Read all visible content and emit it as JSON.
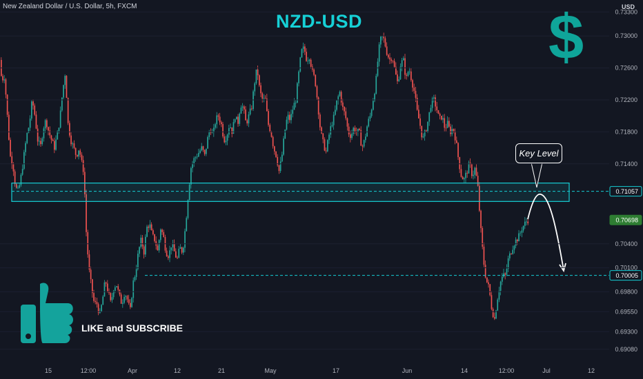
{
  "header": {
    "symbol": "New Zealand Dollar / U.S. Dollar, 5h, FXCM",
    "currency": "USD",
    "title": "NZD-USD",
    "dollar_sign": "$"
  },
  "annotations": {
    "key_level_label": "Key Level",
    "like_text": "LIKE and SUBSCRIBE",
    "thumb_icon": "thumbs-up-icon"
  },
  "colors": {
    "background": "#131722",
    "up": "#26a69a",
    "down": "#ef5350",
    "zone": "#16d0d6",
    "accent_title": "#16d0d6",
    "dollar": "#0fa59a",
    "current_price_tag": "#2e7d32"
  },
  "chart_data": {
    "type": "line",
    "style": "candlestick",
    "x_ticks": [
      "15",
      "12:00",
      "Apr",
      "12",
      "21",
      "May",
      "17",
      "Jun",
      "14",
      "12:00",
      "Jul",
      "12"
    ],
    "y_ticks": [
      "0.73300",
      "0.73000",
      "0.72600",
      "0.72200",
      "0.71800",
      "0.71400",
      "0.70400",
      "0.70100",
      "0.69800",
      "0.69550",
      "0.69300",
      "0.69080"
    ],
    "ylim": [
      0.6895,
      0.7345
    ],
    "price_tags": [
      {
        "value": "0.71057",
        "kind": "level"
      },
      {
        "value": "0.70698",
        "kind": "current"
      },
      {
        "value": "0.70005",
        "kind": "level"
      }
    ],
    "levels": [
      0.71057,
      0.70005
    ],
    "key_zone": [
      0.7093,
      0.7116
    ],
    "series": [
      {
        "path": [
          [
            0,
            0.727
          ],
          [
            4,
            0.7245
          ],
          [
            8,
            0.725
          ],
          [
            12,
            0.72
          ],
          [
            16,
            0.715
          ],
          [
            20,
            0.714
          ],
          [
            24,
            0.711
          ],
          [
            28,
            0.7105
          ],
          [
            32,
            0.7125
          ],
          [
            36,
            0.715
          ],
          [
            40,
            0.7175
          ],
          [
            44,
            0.719
          ],
          [
            48,
            0.722
          ],
          [
            52,
            0.72
          ],
          [
            56,
            0.717
          ],
          [
            60,
            0.716
          ],
          [
            64,
            0.7185
          ],
          [
            68,
            0.7195
          ],
          [
            72,
            0.718
          ],
          [
            76,
            0.717
          ],
          [
            80,
            0.716
          ],
          [
            84,
            0.7175
          ],
          [
            88,
            0.7195
          ],
          [
            92,
            0.723
          ],
          [
            96,
            0.7255
          ],
          [
            100,
            0.719
          ],
          [
            104,
            0.717
          ],
          [
            108,
            0.716
          ],
          [
            112,
            0.715
          ],
          [
            116,
            0.716
          ],
          [
            120,
            0.714
          ],
          [
            123,
            0.713
          ],
          [
            126,
            0.706
          ],
          [
            130,
            0.701
          ],
          [
            134,
            0.6985
          ],
          [
            138,
            0.6965
          ],
          [
            142,
            0.6965
          ],
          [
            146,
            0.695
          ],
          [
            150,
            0.697
          ],
          [
            154,
            0.6995
          ],
          [
            158,
            0.698
          ],
          [
            162,
            0.6965
          ],
          [
            166,
            0.6985
          ],
          [
            170,
            0.699
          ],
          [
            174,
            0.6975
          ],
          [
            178,
            0.6965
          ],
          [
            182,
            0.698
          ],
          [
            186,
            0.697
          ],
          [
            190,
            0.6955
          ],
          [
            194,
            0.699
          ],
          [
            198,
            0.7005
          ],
          [
            202,
            0.703
          ],
          [
            206,
            0.7045
          ],
          [
            210,
            0.703
          ],
          [
            214,
            0.706
          ],
          [
            218,
            0.7065
          ],
          [
            222,
            0.705
          ],
          [
            226,
            0.7045
          ],
          [
            230,
            0.703
          ],
          [
            234,
            0.706
          ],
          [
            238,
            0.705
          ],
          [
            242,
            0.703
          ],
          [
            246,
            0.7025
          ],
          [
            250,
            0.704
          ],
          [
            254,
            0.703
          ],
          [
            258,
            0.702
          ],
          [
            262,
            0.7035
          ],
          [
            266,
            0.703
          ],
          [
            270,
            0.706
          ],
          [
            274,
            0.71
          ],
          [
            278,
            0.7135
          ],
          [
            282,
            0.7145
          ],
          [
            286,
            0.715
          ],
          [
            290,
            0.7155
          ],
          [
            294,
            0.716
          ],
          [
            298,
            0.715
          ],
          [
            302,
            0.717
          ],
          [
            306,
            0.7185
          ],
          [
            310,
            0.7175
          ],
          [
            314,
            0.7195
          ],
          [
            318,
            0.72
          ],
          [
            322,
            0.719
          ],
          [
            326,
            0.717
          ],
          [
            330,
            0.7175
          ],
          [
            334,
            0.719
          ],
          [
            338,
            0.718
          ],
          [
            342,
            0.72
          ],
          [
            346,
            0.719
          ],
          [
            350,
            0.7215
          ],
          [
            354,
            0.721
          ],
          [
            358,
            0.719
          ],
          [
            362,
            0.72
          ],
          [
            366,
            0.721
          ],
          [
            370,
            0.724
          ],
          [
            374,
            0.726
          ],
          [
            378,
            0.723
          ],
          [
            382,
            0.722
          ],
          [
            386,
            0.722
          ],
          [
            390,
            0.719
          ],
          [
            394,
            0.718
          ],
          [
            398,
            0.716
          ],
          [
            402,
            0.715
          ],
          [
            406,
            0.713
          ],
          [
            410,
            0.715
          ],
          [
            414,
            0.718
          ],
          [
            418,
            0.72
          ],
          [
            422,
            0.7195
          ],
          [
            426,
            0.721
          ],
          [
            430,
            0.722
          ],
          [
            434,
            0.725
          ],
          [
            438,
            0.728
          ],
          [
            442,
            0.7285
          ],
          [
            446,
            0.727
          ],
          [
            450,
            0.7275
          ],
          [
            454,
            0.7255
          ],
          [
            458,
            0.7245
          ],
          [
            462,
            0.7215
          ],
          [
            466,
            0.718
          ],
          [
            470,
            0.7165
          ],
          [
            474,
            0.7155
          ],
          [
            478,
            0.7175
          ],
          [
            482,
            0.719
          ],
          [
            486,
            0.72
          ],
          [
            490,
            0.722
          ],
          [
            494,
            0.723
          ],
          [
            498,
            0.721
          ],
          [
            502,
            0.72
          ],
          [
            506,
            0.718
          ],
          [
            510,
            0.7175
          ],
          [
            514,
            0.7185
          ],
          [
            518,
            0.718
          ],
          [
            522,
            0.718
          ],
          [
            526,
            0.716
          ],
          [
            530,
            0.717
          ],
          [
            534,
            0.719
          ],
          [
            538,
            0.72
          ],
          [
            542,
            0.722
          ],
          [
            546,
            0.724
          ],
          [
            550,
            0.728
          ],
          [
            554,
            0.73
          ],
          [
            558,
            0.7295
          ],
          [
            562,
            0.728
          ],
          [
            566,
            0.727
          ],
          [
            570,
            0.7275
          ],
          [
            574,
            0.7255
          ],
          [
            578,
            0.724
          ],
          [
            582,
            0.7265
          ],
          [
            586,
            0.727
          ],
          [
            590,
            0.7245
          ],
          [
            594,
            0.726
          ],
          [
            598,
            0.7245
          ],
          [
            602,
            0.723
          ],
          [
            606,
            0.7205
          ],
          [
            610,
            0.719
          ],
          [
            614,
            0.717
          ],
          [
            618,
            0.718
          ],
          [
            622,
            0.7195
          ],
          [
            626,
            0.7215
          ],
          [
            630,
            0.722
          ],
          [
            634,
            0.721
          ],
          [
            638,
            0.7195
          ],
          [
            642,
            0.72
          ],
          [
            646,
            0.7185
          ],
          [
            650,
            0.719
          ],
          [
            654,
            0.718
          ],
          [
            658,
            0.7185
          ],
          [
            662,
            0.717
          ],
          [
            666,
            0.7145
          ],
          [
            670,
            0.7125
          ],
          [
            674,
            0.712
          ],
          [
            678,
            0.713
          ],
          [
            682,
            0.714
          ],
          [
            686,
            0.7125
          ],
          [
            690,
            0.7135
          ],
          [
            694,
            0.711
          ],
          [
            698,
            0.706
          ],
          [
            702,
            0.702
          ],
          [
            706,
            0.6995
          ],
          [
            710,
            0.6985
          ],
          [
            714,
            0.696
          ],
          [
            718,
            0.6945
          ],
          [
            722,
            0.697
          ],
          [
            726,
            0.699
          ],
          [
            730,
            0.7
          ],
          [
            734,
            0.7
          ],
          [
            738,
            0.702
          ],
          [
            742,
            0.703
          ],
          [
            746,
            0.704
          ],
          [
            750,
            0.7045
          ],
          [
            754,
            0.705
          ],
          [
            758,
            0.706
          ],
          [
            762,
            0.7065
          ],
          [
            766,
            0.707
          ]
        ]
      }
    ]
  }
}
